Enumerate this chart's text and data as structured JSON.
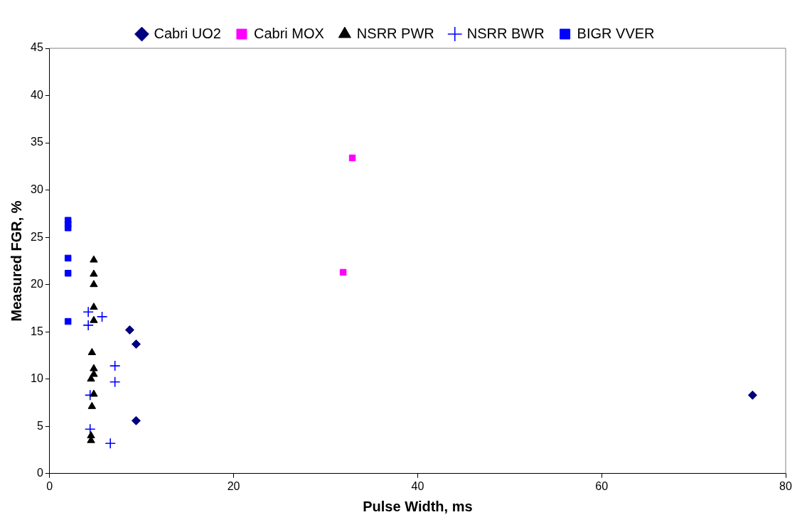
{
  "chart_data": {
    "type": "scatter",
    "xlabel": "Pulse Width, ms",
    "ylabel": "Measured FGR, %",
    "xlim": [
      0,
      80
    ],
    "xticks": [
      0,
      20,
      40,
      60,
      80
    ],
    "ylim": [
      0,
      45
    ],
    "yticks": [
      0,
      5,
      10,
      15,
      20,
      25,
      30,
      35,
      40,
      45
    ],
    "grid": false,
    "legend": "top",
    "series": [
      {
        "name": "Cabri UO2",
        "color": "#000080",
        "marker": "diamond",
        "x": [
          8.7,
          9.4,
          9.4,
          76.4
        ],
        "values": [
          15.2,
          13.7,
          5.6,
          8.3
        ]
      },
      {
        "name": "Cabri MOX",
        "color": "#ff00ff",
        "marker": "square",
        "x": [
          32.9,
          31.9
        ],
        "values": [
          33.4,
          21.3
        ]
      },
      {
        "name": "NSRR PWR",
        "color": "#000000",
        "marker": "triangle",
        "x": [
          4.8,
          4.8,
          4.8,
          4.8,
          4.8,
          4.6,
          4.8,
          4.8,
          4.5,
          4.8,
          4.6,
          4.5,
          4.5
        ],
        "values": [
          22.6,
          21.1,
          20.0,
          17.6,
          16.2,
          12.8,
          11.1,
          10.5,
          10.0,
          8.4,
          7.1,
          4.0,
          3.5
        ]
      },
      {
        "name": "NSRR BWR",
        "color": "#0000ff",
        "marker": "cross",
        "x": [
          4.2,
          5.7,
          4.2,
          7.1,
          7.1,
          4.4,
          4.4,
          6.6
        ],
        "values": [
          17.1,
          16.6,
          15.7,
          11.4,
          9.7,
          8.3,
          4.7,
          3.2
        ]
      },
      {
        "name": "BIGR VVER",
        "color": "#0000ff",
        "marker": "square",
        "x": [
          2,
          2,
          2,
          2,
          2,
          2
        ],
        "values": [
          26.8,
          26.4,
          26.0,
          22.8,
          21.2,
          16.1
        ]
      }
    ]
  }
}
